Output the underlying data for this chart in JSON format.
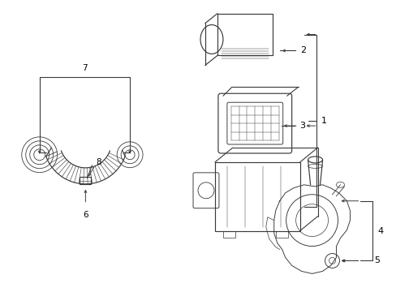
{
  "background_color": "#ffffff",
  "line_color": "#3a3a3a",
  "label_color": "#000000",
  "figsize": [
    4.89,
    3.6
  ],
  "dpi": 100,
  "label_fontsize": 7.5,
  "lw": 0.85
}
